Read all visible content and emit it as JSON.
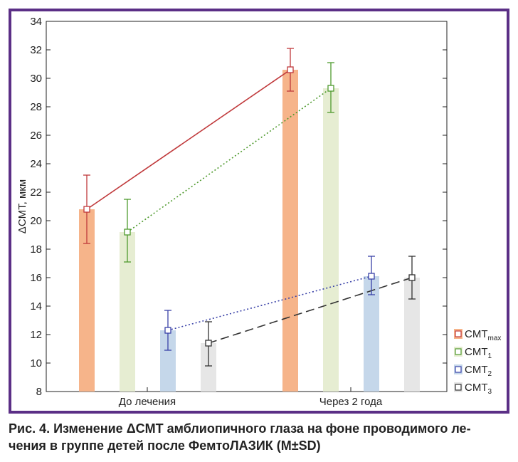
{
  "chart_data": {
    "type": "bar",
    "ylabel": "ΔCMT, мкм",
    "xlabel": "",
    "ylim": [
      8,
      34
    ],
    "yticks": [
      8,
      10,
      12,
      14,
      16,
      18,
      20,
      22,
      24,
      26,
      28,
      30,
      32,
      34
    ],
    "categories": [
      "До лечения",
      "Через 2 года"
    ],
    "grid": false,
    "legend_position": "bottom-right",
    "series": [
      {
        "name": "CMTmax",
        "legend_main": "CMT",
        "legend_sub": "max",
        "values": [
          20.8,
          30.6
        ],
        "err_low": [
          18.4,
          29.1
        ],
        "err_high": [
          23.2,
          32.1
        ],
        "bar_color": "#f6b48a",
        "line_color": "#c0393b",
        "line_style": "solid"
      },
      {
        "name": "CMT1",
        "legend_main": "CMT",
        "legend_sub": "1",
        "values": [
          19.2,
          29.3
        ],
        "err_low": [
          17.1,
          27.6
        ],
        "err_high": [
          21.5,
          31.1
        ],
        "bar_color": "#e6edd2",
        "line_color": "#4f9a2e",
        "line_style": "dotted"
      },
      {
        "name": "CMT2",
        "legend_main": "CMT",
        "legend_sub": "2",
        "values": [
          12.3,
          16.1
        ],
        "err_low": [
          10.9,
          14.8
        ],
        "err_high": [
          13.7,
          17.5
        ],
        "bar_color": "#c5d7ea",
        "line_color": "#3a42a8",
        "line_style": "dotted"
      },
      {
        "name": "CMT3",
        "legend_main": "CMT",
        "legend_sub": "3",
        "values": [
          11.4,
          16.0
        ],
        "err_low": [
          9.8,
          14.5
        ],
        "err_high": [
          12.9,
          17.5
        ],
        "bar_color": "#e6e6e6",
        "line_color": "#333333",
        "line_style": "dashed"
      }
    ]
  },
  "caption": {
    "line1": "Рис. 4. Изменение ΔCMT амблиопичного глаза на фоне проводимого ле-",
    "line2": "чения в группе детей после ФемтоЛАЗИК (M±SD)"
  },
  "colors": {
    "frame": "#5b2f86"
  }
}
